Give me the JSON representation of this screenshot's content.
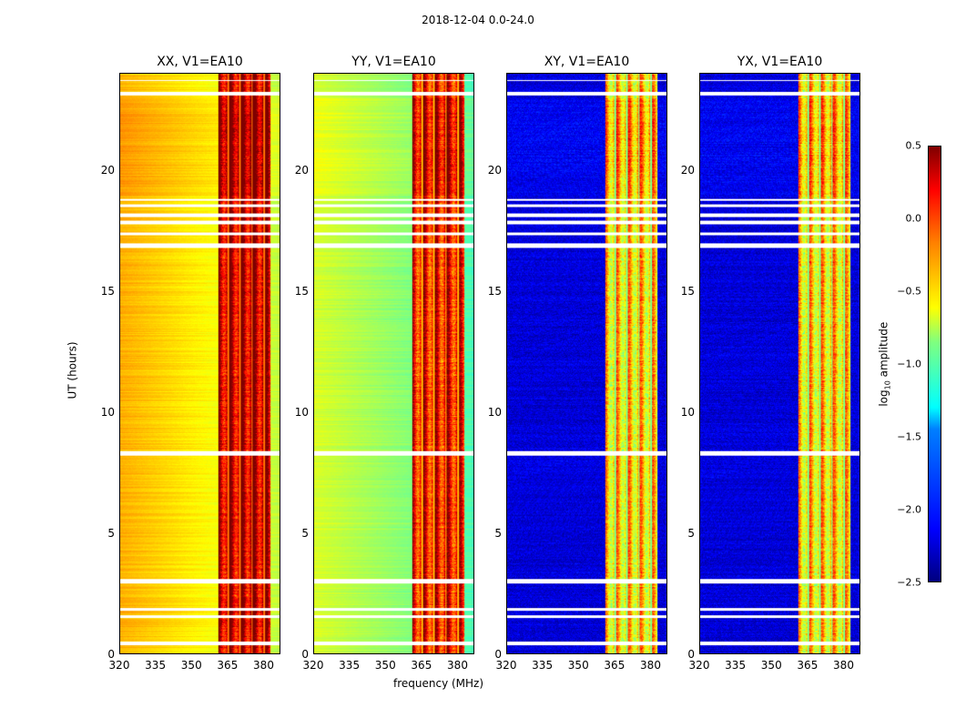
{
  "suptitle": "2018-12-04 0.0-24.0",
  "chart_data": {
    "type": "heatmap",
    "title": "2018-12-04 0.0-24.0",
    "xlabel": "frequency (MHz)",
    "ylabel": "UT (hours)",
    "xlim": [
      320,
      387
    ],
    "ylim": [
      0,
      24
    ],
    "xticks": [
      320,
      335,
      350,
      365,
      380
    ],
    "yticks": [
      0,
      5,
      10,
      15,
      20
    ],
    "panels": [
      {
        "title": "XX, V1=EA10",
        "base_level": -0.45,
        "band_level": 0.2
      },
      {
        "title": "YY, V1=EA10",
        "base_level": -0.8,
        "band_level": 0.0
      },
      {
        "title": "XY, V1=EA10",
        "base_level": -2.3,
        "band_level": -0.6
      },
      {
        "title": "YX, V1=EA10",
        "base_level": -2.3,
        "band_level": -0.6
      }
    ],
    "band_mhz": [
      361,
      383
    ],
    "flagged_hours": [
      [
        0.35,
        0.5
      ],
      [
        1.5,
        1.6
      ],
      [
        1.8,
        1.9
      ],
      [
        2.9,
        3.1
      ],
      [
        8.2,
        8.4
      ],
      [
        16.8,
        17.0
      ],
      [
        17.35,
        17.45
      ],
      [
        17.8,
        17.95
      ],
      [
        18.1,
        18.25
      ],
      [
        18.5,
        18.6
      ],
      [
        18.75,
        18.85
      ],
      [
        23.1,
        23.25
      ],
      [
        23.7,
        23.75
      ]
    ],
    "colorbar": {
      "label": "log10 amplitude",
      "label_main": "log",
      "label_sub": "10",
      "label_rest": " amplitude",
      "range": [
        -2.5,
        0.5
      ],
      "ticks": [
        "0.5",
        "0.0",
        "−0.5",
        "−1.0",
        "−1.5",
        "−2.0",
        "−2.5"
      ],
      "colormap": "jet"
    }
  }
}
